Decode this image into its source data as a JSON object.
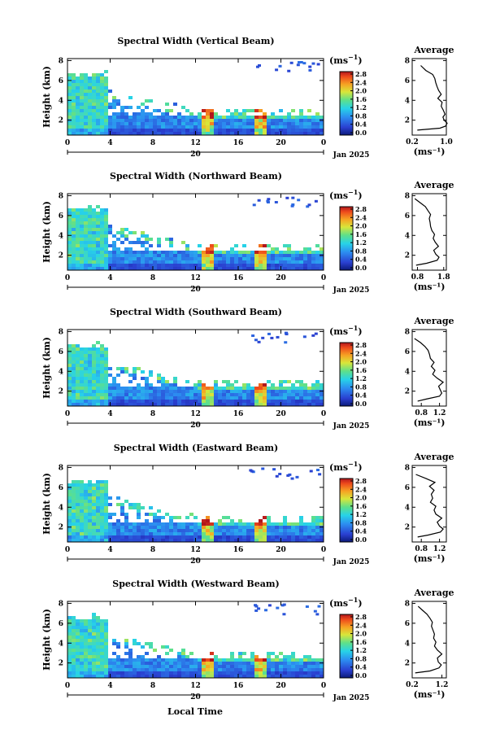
{
  "figure": {
    "x_tick_labels": [
      "0",
      "4",
      "8",
      "12",
      "16",
      "20",
      "0"
    ],
    "date_day": "20",
    "date_month": "Jan 2025",
    "y_tick_labels": [
      "2",
      "4",
      "6",
      "8"
    ],
    "y_label": "Height (km)",
    "x_label": "Local Time",
    "unit_label": "(ms",
    "unit_sup": "−1",
    "unit_close": ")",
    "colorbar_ticks": [
      "0.0",
      "0.4",
      "0.8",
      "1.2",
      "1.6",
      "2.0",
      "2.4",
      "2.8"
    ],
    "profile_title": "Average",
    "profile_y_ticks": [
      "2",
      "4",
      "6",
      "8"
    ]
  },
  "chart_data": [
    {
      "type": "heatmap",
      "title": "Spectral Width (Vertical Beam)",
      "x_range_hours": [
        0,
        24
      ],
      "y_range_km": [
        0.5,
        8.2
      ],
      "color_range_ms": [
        0,
        2.8
      ],
      "profile": {
        "title": "Average",
        "xlabel": "(ms⁻¹)",
        "x_tick_labels": [
          "0.2",
          "1.0"
        ],
        "x_range": [
          0.2,
          1.0
        ],
        "height_km": [
          1.0,
          1.2,
          1.4,
          1.7,
          2.0,
          2.3,
          2.6,
          3.0,
          3.4,
          3.8,
          4.2,
          4.6,
          5.0,
          5.4,
          5.8,
          6.2,
          6.6,
          7.0,
          7.5
        ],
        "value": [
          0.32,
          0.85,
          0.98,
          1.02,
          0.95,
          0.92,
          0.97,
          0.93,
          0.88,
          0.9,
          0.8,
          0.88,
          0.82,
          0.78,
          0.75,
          0.73,
          0.68,
          0.52,
          0.4
        ]
      }
    },
    {
      "type": "heatmap",
      "title": "Spectral Width (Northward Beam)",
      "x_range_hours": [
        0,
        24
      ],
      "y_range_km": [
        0.5,
        8.2
      ],
      "color_range_ms": [
        0,
        2.8
      ],
      "profile": {
        "title": "Average",
        "xlabel": "(ms⁻¹)",
        "x_tick_labels": [
          "0.8",
          "1.8"
        ],
        "x_range": [
          0.6,
          1.9
        ],
        "height_km": [
          1.0,
          1.2,
          1.5,
          1.8,
          2.1,
          2.5,
          2.9,
          3.3,
          3.7,
          4.1,
          4.5,
          4.9,
          5.3,
          5.7,
          6.1,
          6.5,
          6.9,
          7.3,
          7.7
        ],
        "value": [
          0.75,
          1.15,
          1.55,
          1.62,
          1.5,
          1.42,
          1.6,
          1.48,
          1.4,
          1.45,
          1.35,
          1.3,
          1.28,
          1.25,
          1.3,
          1.2,
          1.1,
          0.9,
          0.7
        ]
      }
    },
    {
      "type": "heatmap",
      "title": "Spectral Width (Southward Beam)",
      "x_range_hours": [
        0,
        24
      ],
      "y_range_km": [
        0.5,
        8.2
      ],
      "color_range_ms": [
        0,
        2.8
      ],
      "profile": {
        "title": "Average",
        "xlabel": "(ms⁻¹)",
        "x_tick_labels": [
          "0.8",
          "1.2"
        ],
        "x_range": [
          0.6,
          1.35
        ],
        "height_km": [
          1.0,
          1.2,
          1.5,
          1.8,
          2.1,
          2.5,
          2.9,
          3.3,
          3.7,
          4.1,
          4.5,
          4.9,
          5.3,
          5.7,
          6.1,
          6.5,
          6.9,
          7.3
        ],
        "value": [
          0.72,
          0.9,
          1.2,
          1.25,
          1.22,
          1.18,
          1.28,
          1.15,
          1.05,
          1.1,
          1.02,
          1.08,
          1.0,
          0.98,
          0.95,
          0.88,
          0.78,
          0.65
        ]
      }
    },
    {
      "type": "heatmap",
      "title": "Spectral Width (Eastward Beam)",
      "x_range_hours": [
        0,
        24
      ],
      "y_range_km": [
        0.5,
        8.2
      ],
      "color_range_ms": [
        0,
        2.8
      ],
      "profile": {
        "title": "Average",
        "xlabel": "(ms⁻¹)",
        "x_tick_labels": [
          "0.8",
          "1.2"
        ],
        "x_range": [
          0.6,
          1.35
        ],
        "height_km": [
          1.0,
          1.2,
          1.5,
          1.8,
          2.1,
          2.5,
          2.9,
          3.3,
          3.7,
          4.1,
          4.5,
          4.9,
          5.3,
          5.7,
          6.1,
          6.5,
          6.9,
          7.3
        ],
        "value": [
          0.72,
          0.95,
          1.22,
          1.28,
          1.2,
          1.15,
          1.25,
          1.12,
          1.08,
          1.12,
          1.0,
          1.05,
          1.02,
          1.08,
          0.98,
          1.1,
          0.9,
          0.68
        ]
      }
    },
    {
      "type": "heatmap",
      "title": "Spectral Width (Westward Beam)",
      "x_range_hours": [
        0,
        24
      ],
      "y_range_km": [
        0.5,
        8.2
      ],
      "color_range_ms": [
        0,
        2.8
      ],
      "profile": {
        "title": "Average",
        "xlabel": "(ms⁻¹)",
        "x_tick_labels": [
          "0.2",
          "1.2"
        ],
        "x_range": [
          0.2,
          1.35
        ],
        "height_km": [
          1.0,
          1.2,
          1.5,
          1.8,
          2.1,
          2.5,
          2.9,
          3.3,
          3.7,
          4.1,
          4.5,
          4.9,
          5.3,
          5.7,
          6.1,
          6.5,
          6.9,
          7.3,
          7.7
        ],
        "value": [
          0.3,
          0.8,
          1.1,
          1.18,
          1.08,
          1.05,
          1.2,
          1.05,
          0.95,
          1.0,
          0.92,
          0.95,
          0.9,
          0.85,
          0.88,
          0.8,
          0.7,
          0.55,
          0.4
        ]
      }
    }
  ]
}
